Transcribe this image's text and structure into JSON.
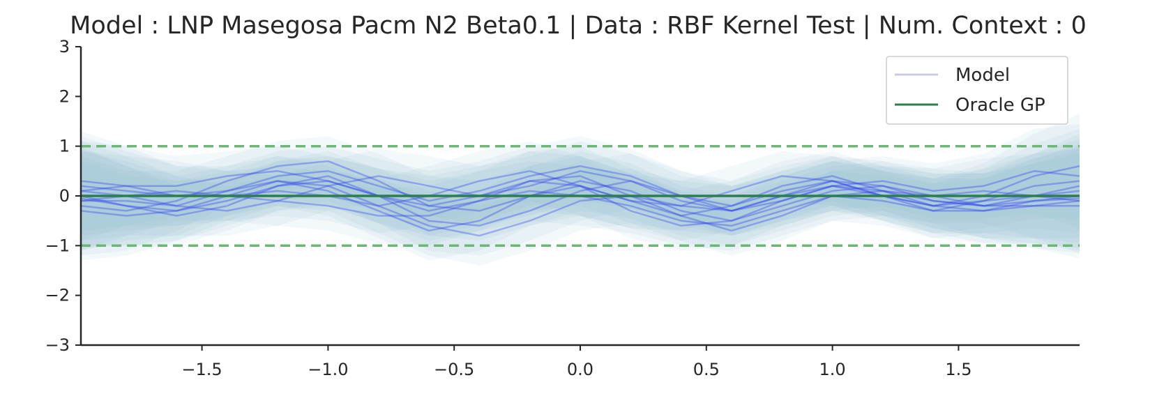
{
  "chart_data": {
    "type": "line",
    "title": "Model : LNP Masegosa Pacm N2 Beta0.1 | Data : RBF Kernel Test | Num. Context : 0",
    "xlabel": "",
    "ylabel": "",
    "xlim": [
      -1.98,
      1.98
    ],
    "ylim": [
      -3,
      3
    ],
    "xticks": [
      -1.5,
      -1.0,
      -0.5,
      0.0,
      0.5,
      1.0,
      1.5
    ],
    "xtick_labels": [
      "−1.5",
      "−1.0",
      "−0.5",
      "0.0",
      "0.5",
      "1.0",
      "1.5"
    ],
    "yticks": [
      -3,
      -2,
      -1,
      0,
      1,
      2,
      3
    ],
    "ytick_labels": [
      "−3",
      "−2",
      "−1",
      "0",
      "1",
      "2",
      "3"
    ],
    "grid": false,
    "legend_position": "top-right",
    "legend": [
      {
        "label": "Model",
        "color": "#c9c9e8",
        "style": "solid"
      },
      {
        "label": "Oracle GP",
        "color": "#2e7d4f",
        "style": "solid"
      }
    ],
    "oracle_mean": {
      "name": "Oracle GP",
      "x": [
        -1.98,
        1.98
      ],
      "y": [
        0,
        0
      ],
      "color": "#2e7d4f"
    },
    "oracle_bounds": {
      "x": [
        -1.98,
        1.98
      ],
      "upper": [
        1,
        1
      ],
      "lower": [
        -1,
        -1
      ],
      "color": "#6ab873",
      "style": "dashed"
    },
    "samples": {
      "color": "#2b3cf0",
      "band_color": "#7fb0cc",
      "band_halfwidth": {
        "x": [
          -1.98,
          -1.8,
          -1.6,
          -1.4,
          -1.2,
          -1.0,
          -0.8,
          -0.6,
          -0.4,
          -0.2,
          0.0,
          0.2,
          0.4,
          0.6,
          0.8,
          1.0,
          1.2,
          1.4,
          1.6,
          1.8,
          1.98
        ],
        "y": [
          1.0,
          0.8,
          0.6,
          0.5,
          0.5,
          0.5,
          0.55,
          0.6,
          0.6,
          0.6,
          0.6,
          0.55,
          0.5,
          0.5,
          0.5,
          0.5,
          0.5,
          0.55,
          0.65,
          0.85,
          1.05
        ]
      },
      "x": [
        -1.98,
        -1.8,
        -1.6,
        -1.4,
        -1.2,
        -1.0,
        -0.8,
        -0.6,
        -0.4,
        -0.2,
        0.0,
        0.2,
        0.4,
        0.6,
        0.8,
        1.0,
        1.2,
        1.4,
        1.6,
        1.8,
        1.98
      ],
      "curves": [
        [
          -0.05,
          -0.2,
          -0.3,
          -0.1,
          0.2,
          0.4,
          0.0,
          -0.5,
          -0.6,
          -0.3,
          0.1,
          0.3,
          0.0,
          -0.3,
          -0.1,
          0.2,
          0.0,
          -0.2,
          -0.1,
          0.0,
          0.1
        ],
        [
          0.1,
          0.0,
          -0.2,
          0.1,
          0.3,
          0.1,
          -0.3,
          -0.7,
          -0.5,
          0.0,
          0.3,
          0.1,
          -0.3,
          -0.5,
          -0.2,
          0.1,
          0.2,
          0.0,
          -0.2,
          -0.1,
          0.0
        ],
        [
          -0.2,
          -0.3,
          -0.1,
          0.3,
          0.6,
          0.7,
          0.3,
          -0.2,
          -0.3,
          0.0,
          0.2,
          -0.1,
          -0.4,
          -0.2,
          0.2,
          0.4,
          0.1,
          -0.2,
          -0.3,
          -0.1,
          -0.05
        ],
        [
          0.2,
          0.1,
          0.0,
          0.0,
          0.1,
          0.0,
          -0.2,
          0.0,
          0.3,
          0.5,
          0.2,
          -0.3,
          -0.6,
          -0.5,
          -0.1,
          0.2,
          0.3,
          0.1,
          0.2,
          0.5,
          0.4
        ],
        [
          -0.1,
          -0.1,
          -0.2,
          -0.3,
          -0.1,
          0.2,
          0.4,
          0.2,
          0.0,
          0.2,
          0.5,
          0.3,
          -0.1,
          -0.3,
          0.0,
          0.3,
          0.2,
          -0.1,
          -0.2,
          0.0,
          0.2
        ],
        [
          0.0,
          -0.2,
          -0.4,
          -0.2,
          0.2,
          0.3,
          0.0,
          -0.3,
          -0.1,
          0.3,
          0.4,
          0.0,
          -0.4,
          -0.7,
          -0.4,
          0.0,
          0.1,
          -0.1,
          -0.2,
          -0.2,
          -0.1
        ],
        [
          0.3,
          0.2,
          0.0,
          0.1,
          0.4,
          0.5,
          0.2,
          -0.1,
          0.1,
          0.4,
          0.6,
          0.4,
          0.0,
          -0.2,
          0.1,
          0.3,
          0.0,
          -0.3,
          -0.1,
          0.2,
          0.3
        ],
        [
          -0.3,
          -0.4,
          -0.3,
          0.0,
          0.3,
          0.2,
          -0.2,
          -0.6,
          -0.8,
          -0.5,
          -0.1,
          0.0,
          -0.2,
          -0.3,
          0.0,
          0.2,
          0.1,
          0.0,
          0.1,
          0.0,
          -0.1
        ],
        [
          0.1,
          0.2,
          0.2,
          0.4,
          0.5,
          0.3,
          0.0,
          -0.2,
          0.0,
          0.3,
          0.2,
          -0.1,
          -0.2,
          0.1,
          0.4,
          0.3,
          0.0,
          -0.2,
          0.0,
          0.4,
          0.6
        ],
        [
          -0.1,
          0.0,
          0.1,
          0.0,
          -0.1,
          -0.2,
          -0.4,
          -0.4,
          -0.1,
          0.1,
          0.0,
          -0.2,
          -0.5,
          -0.6,
          -0.3,
          0.0,
          -0.1,
          -0.3,
          -0.3,
          -0.2,
          -0.2
        ]
      ]
    }
  }
}
